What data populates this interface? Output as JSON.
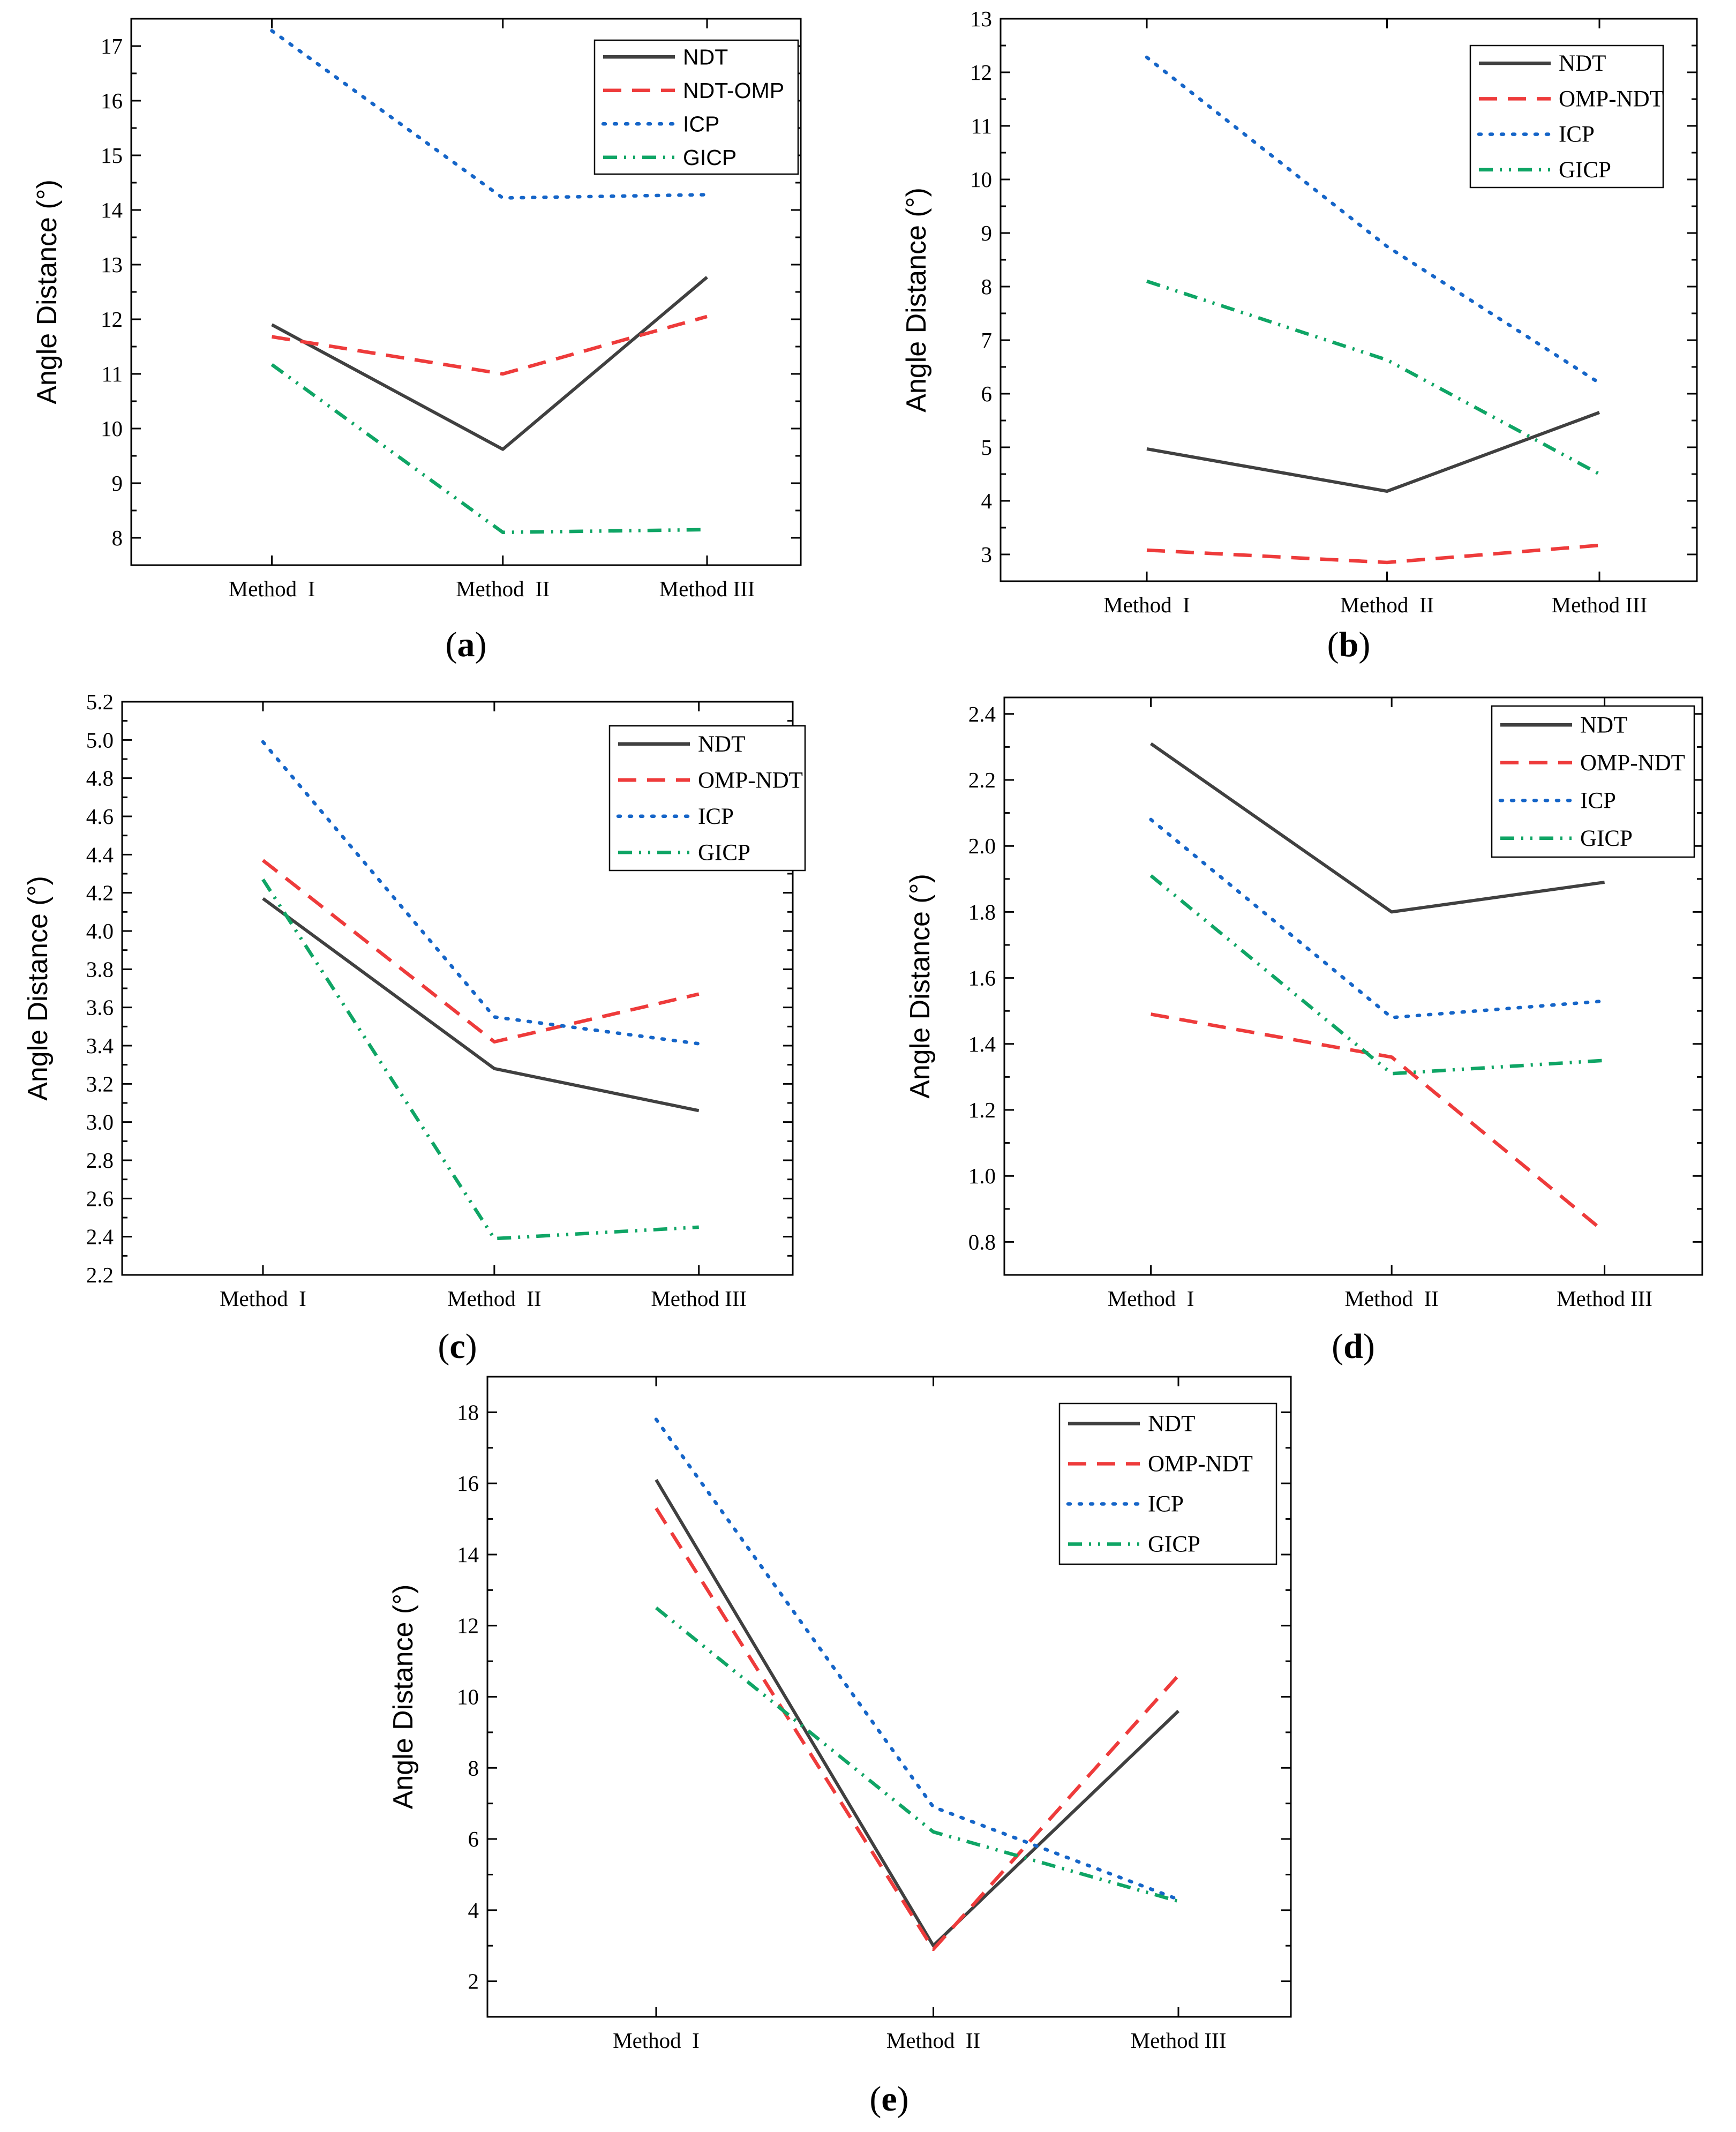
{
  "colors": {
    "NDT": "#404040",
    "second": "#ee3b3b",
    "ICP": "#1565c8",
    "GICP": "#0fa565"
  },
  "chart_data": [
    {
      "panel": "a",
      "type": "line",
      "categories": [
        "Method  I",
        "Method  II",
        "Method III"
      ],
      "ylabel": "Angle Distance (°)",
      "ylim": [
        7.5,
        17.5
      ],
      "yticks": [
        "8",
        "9",
        "10",
        "11",
        "12",
        "13",
        "14",
        "15",
        "16",
        "17"
      ],
      "legend": "top-right",
      "series": [
        {
          "name": "NDT",
          "style": "solid",
          "values": [
            11.9,
            9.62,
            12.77
          ]
        },
        {
          "name": "NDT-OMP",
          "style": "dash",
          "values": [
            11.68,
            11.0,
            12.05
          ]
        },
        {
          "name": "ICP",
          "style": "dot",
          "values": [
            17.28,
            14.22,
            14.28
          ]
        },
        {
          "name": "GICP",
          "style": "dashdotdot",
          "values": [
            11.17,
            8.1,
            8.15
          ]
        }
      ]
    },
    {
      "panel": "b",
      "type": "line",
      "categories": [
        "Method  I",
        "Method  II",
        "Method III"
      ],
      "ylabel": "Angle Distance (°)",
      "ylim": [
        2.5,
        13
      ],
      "yticks": [
        "3",
        "4",
        "5",
        "6",
        "7",
        "8",
        "9",
        "10",
        "11",
        "12",
        "13"
      ],
      "legend": "top-right",
      "series": [
        {
          "name": "NDT",
          "style": "solid",
          "values": [
            4.97,
            4.18,
            5.65
          ]
        },
        {
          "name": "OMP-NDT",
          "style": "dash",
          "values": [
            3.08,
            2.85,
            3.17
          ]
        },
        {
          "name": "ICP",
          "style": "dot",
          "values": [
            12.28,
            8.75,
            6.2
          ]
        },
        {
          "name": "GICP",
          "style": "dashdotdot",
          "values": [
            8.1,
            6.63,
            4.5
          ]
        }
      ]
    },
    {
      "panel": "c",
      "type": "line",
      "categories": [
        "Method  I",
        "Method  II",
        "Method III"
      ],
      "ylabel": "Angle Distance (°)",
      "ylim": [
        2.2,
        5.2
      ],
      "yticks": [
        "2.2",
        "2.4",
        "2.6",
        "2.8",
        "3.0",
        "3.2",
        "3.4",
        "3.6",
        "3.8",
        "4.0",
        "4.2",
        "4.4",
        "4.6",
        "4.8",
        "5.0",
        "5.2"
      ],
      "legend": "top-right",
      "series": [
        {
          "name": "NDT",
          "style": "solid",
          "values": [
            4.17,
            3.28,
            3.06
          ]
        },
        {
          "name": "OMP-NDT",
          "style": "dash",
          "values": [
            4.37,
            3.42,
            3.67
          ]
        },
        {
          "name": "ICP",
          "style": "dot",
          "values": [
            4.99,
            3.55,
            3.41
          ]
        },
        {
          "name": "GICP",
          "style": "dashdotdot",
          "values": [
            4.27,
            2.39,
            2.45
          ]
        }
      ]
    },
    {
      "panel": "d",
      "type": "line",
      "categories": [
        "Method  I",
        "Method  II",
        "Method III"
      ],
      "ylabel": "Angle Distance (°)",
      "ylim": [
        0.7,
        2.45
      ],
      "yticks": [
        "0.8",
        "1.0",
        "1.2",
        "1.4",
        "1.6",
        "1.8",
        "2.0",
        "2.2",
        "2.4"
      ],
      "legend": "top-right",
      "series": [
        {
          "name": "NDT",
          "style": "solid",
          "values": [
            2.31,
            1.8,
            1.89
          ]
        },
        {
          "name": "OMP-NDT",
          "style": "dash",
          "values": [
            1.49,
            1.36,
            0.83
          ]
        },
        {
          "name": "ICP",
          "style": "dot",
          "values": [
            2.08,
            1.48,
            1.53
          ]
        },
        {
          "name": "GICP",
          "style": "dashdotdot",
          "values": [
            1.91,
            1.31,
            1.35
          ]
        }
      ]
    },
    {
      "panel": "e",
      "type": "line",
      "categories": [
        "Method  I",
        "Method  II",
        "Method III"
      ],
      "ylabel": "Angle Distance (°)",
      "ylim": [
        1,
        19
      ],
      "yticks": [
        "2",
        "4",
        "6",
        "8",
        "10",
        "12",
        "14",
        "16",
        "18"
      ],
      "legend": "top-right",
      "series": [
        {
          "name": "NDT",
          "style": "solid",
          "values": [
            16.1,
            3.0,
            9.6
          ]
        },
        {
          "name": "OMP-NDT",
          "style": "dash",
          "values": [
            15.3,
            2.9,
            10.6
          ]
        },
        {
          "name": "ICP",
          "style": "dot",
          "values": [
            17.8,
            6.9,
            4.3
          ]
        },
        {
          "name": "GICP",
          "style": "dashdotdot",
          "values": [
            12.5,
            6.2,
            4.25
          ]
        }
      ]
    }
  ]
}
